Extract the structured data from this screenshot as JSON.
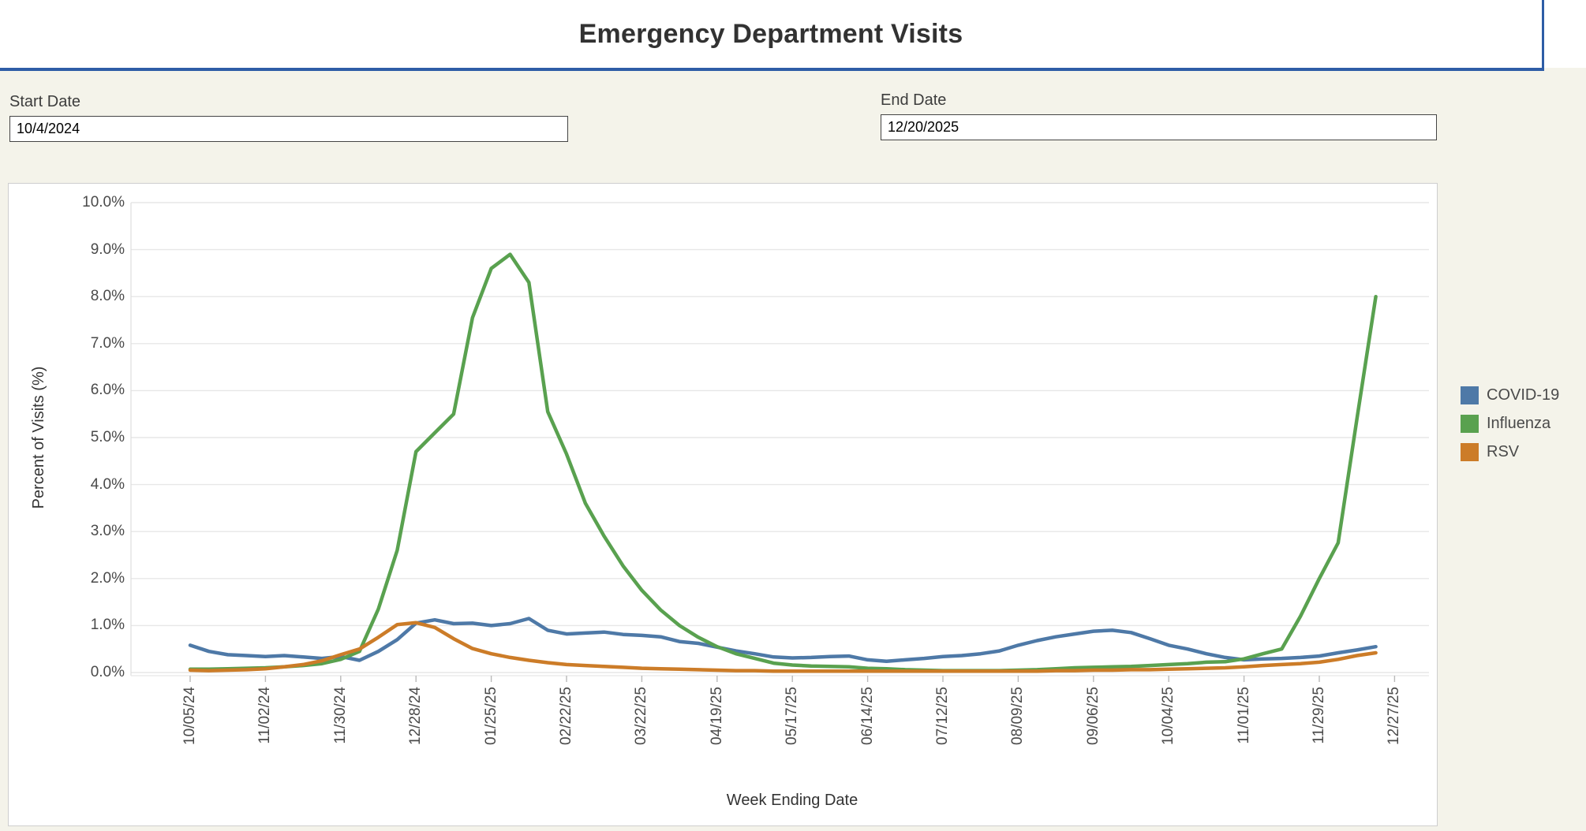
{
  "header": {
    "title": "Emergency Department Visits",
    "accent_color": "#2E5DA6"
  },
  "page": {
    "background": "#F4F3EA"
  },
  "filters": {
    "start": {
      "label": "Start Date",
      "value": "10/4/2024"
    },
    "end": {
      "label": "End Date",
      "value": "12/20/2025"
    }
  },
  "chart_data": {
    "type": "line",
    "title": "",
    "xlabel": "Week Ending Date",
    "ylabel": "Percent of Visits (%)",
    "ylim": [
      0,
      10
    ],
    "grid": true,
    "legend_position": "right",
    "ytick_labels": [
      "0.0%",
      "1.0%",
      "2.0%",
      "3.0%",
      "4.0%",
      "5.0%",
      "6.0%",
      "7.0%",
      "8.0%",
      "9.0%",
      "10.0%"
    ],
    "xtick_labels": [
      "10/05/24",
      "11/02/24",
      "11/30/24",
      "12/28/24",
      "01/25/25",
      "02/22/25",
      "03/22/25",
      "04/19/25",
      "05/17/25",
      "06/14/25",
      "07/12/25",
      "08/09/25",
      "09/06/25",
      "10/04/25",
      "11/01/25",
      "11/29/25",
      "12/27/25"
    ],
    "x_unit": "week",
    "weeks_per_tick": 4,
    "x_range": [
      "10/05/24",
      "12/20/25"
    ],
    "series": [
      {
        "name": "COVID-19",
        "color": "#4E79A7",
        "values": [
          0.58,
          0.45,
          0.38,
          0.36,
          0.34,
          0.36,
          0.33,
          0.3,
          0.34,
          0.26,
          0.45,
          0.7,
          1.05,
          1.12,
          1.04,
          1.05,
          1.0,
          1.04,
          1.15,
          0.9,
          0.82,
          0.84,
          0.86,
          0.81,
          0.79,
          0.76,
          0.66,
          0.62,
          0.54,
          0.46,
          0.4,
          0.33,
          0.31,
          0.32,
          0.34,
          0.35,
          0.27,
          0.24,
          0.27,
          0.3,
          0.34,
          0.36,
          0.4,
          0.46,
          0.58,
          0.68,
          0.76,
          0.82,
          0.88,
          0.9,
          0.85,
          0.72,
          0.58,
          0.5,
          0.4,
          0.32,
          0.27,
          0.29,
          0.3,
          0.32,
          0.35,
          0.42,
          0.48,
          0.55
        ]
      },
      {
        "name": "Influenza",
        "color": "#59A14F",
        "values": [
          0.07,
          0.07,
          0.08,
          0.09,
          0.1,
          0.12,
          0.15,
          0.19,
          0.28,
          0.45,
          1.35,
          2.6,
          4.7,
          5.1,
          5.5,
          7.55,
          8.6,
          8.9,
          8.3,
          5.55,
          4.65,
          3.6,
          2.9,
          2.27,
          1.75,
          1.33,
          1.0,
          0.75,
          0.55,
          0.4,
          0.3,
          0.2,
          0.16,
          0.14,
          0.13,
          0.12,
          0.09,
          0.08,
          0.06,
          0.05,
          0.04,
          0.04,
          0.04,
          0.04,
          0.05,
          0.06,
          0.08,
          0.1,
          0.11,
          0.12,
          0.13,
          0.15,
          0.17,
          0.19,
          0.22,
          0.23,
          0.29,
          0.4,
          0.5,
          1.2,
          2.0,
          2.76,
          5.4,
          8.0
        ]
      },
      {
        "name": "RSV",
        "color": "#CC7C28",
        "values": [
          0.05,
          0.04,
          0.05,
          0.06,
          0.08,
          0.12,
          0.17,
          0.25,
          0.38,
          0.5,
          0.75,
          1.02,
          1.06,
          0.96,
          0.72,
          0.51,
          0.4,
          0.32,
          0.26,
          0.21,
          0.17,
          0.15,
          0.13,
          0.11,
          0.09,
          0.08,
          0.07,
          0.06,
          0.05,
          0.04,
          0.04,
          0.03,
          0.03,
          0.03,
          0.03,
          0.03,
          0.03,
          0.03,
          0.03,
          0.03,
          0.03,
          0.03,
          0.03,
          0.03,
          0.03,
          0.03,
          0.04,
          0.04,
          0.05,
          0.05,
          0.06,
          0.06,
          0.07,
          0.08,
          0.09,
          0.1,
          0.12,
          0.15,
          0.17,
          0.19,
          0.22,
          0.28,
          0.36,
          0.42
        ]
      }
    ]
  }
}
